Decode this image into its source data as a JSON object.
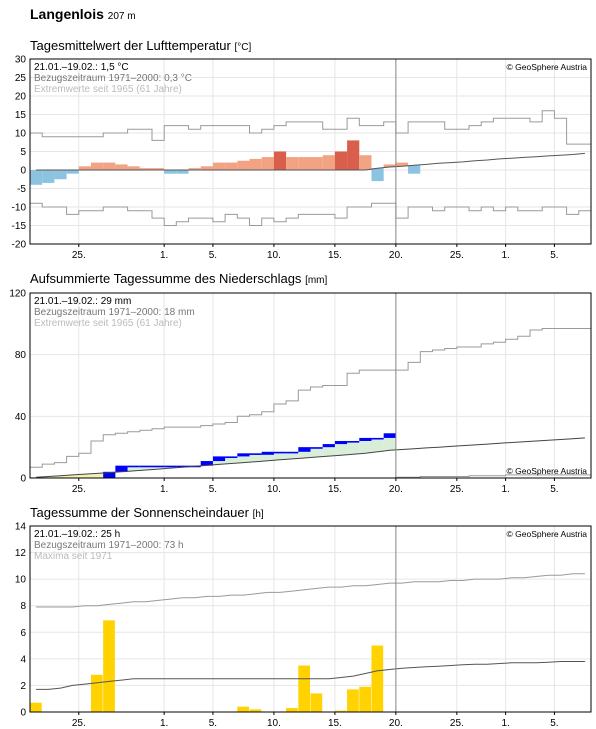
{
  "station": {
    "name": "Langenlois",
    "altitude": "207 m"
  },
  "panels": [
    {
      "title": "Tagesmittelwert der Lufttemperatur",
      "unit": "[°C]"
    },
    {
      "title": "Aufsummierte Tagessumme des Niederschlags",
      "unit": "[mm]"
    },
    {
      "title": "Tagessumme der Sonnenscheindauer",
      "unit": "[h]"
    }
  ],
  "chart_data": [
    {
      "type": "bar",
      "name": "temperature",
      "info": [
        "21.01.–19.02.: 1,5 °C",
        "Bezugszeitraum 1971–2000: 0,3 °C",
        "Extremwerte seit 1965 (61 Jahre)"
      ],
      "copyright": "© GeoSphere Austria",
      "ylim": [
        -20,
        30
      ],
      "yticks": [
        -20,
        -15,
        -10,
        -5,
        0,
        5,
        10,
        15,
        20,
        25,
        30
      ],
      "x_day_range": [
        0,
        46
      ],
      "xticks": [
        {
          "day": 4,
          "label": "25."
        },
        {
          "day": 11,
          "label": "1."
        },
        {
          "day": 15,
          "label": "5."
        },
        {
          "day": 20,
          "label": "10."
        },
        {
          "day": 25,
          "label": "15."
        },
        {
          "day": 30,
          "label": "20."
        },
        {
          "day": 35,
          "label": "25."
        },
        {
          "day": 39,
          "label": "1."
        },
        {
          "day": 43,
          "label": "5."
        }
      ],
      "current_day_marker": 30,
      "daily_values": [
        -4,
        -3.5,
        -2.5,
        -1,
        1,
        2,
        2,
        1.5,
        1,
        0.5,
        0.5,
        -1,
        -1,
        0.5,
        1,
        2,
        2,
        2.5,
        3,
        3.5,
        5,
        3.5,
        3.5,
        3.5,
        4,
        5,
        8,
        4,
        -3,
        1.5,
        2,
        -1
      ],
      "mean_line": [
        0,
        0,
        0,
        0,
        0,
        0,
        0,
        0,
        0,
        0,
        0,
        0,
        0,
        0,
        0,
        0,
        0,
        0,
        0,
        0,
        0,
        0,
        0,
        0,
        0,
        0,
        0,
        0,
        0.5,
        0.8,
        1,
        1.3,
        1.5,
        1.8,
        2,
        2.2,
        2.5,
        2.7,
        3,
        3.2,
        3.4,
        3.6,
        3.8,
        4,
        4.2,
        4.5
      ],
      "max_line": [
        10,
        9,
        9,
        9,
        9,
        9,
        10,
        10,
        11,
        11,
        8,
        12,
        12,
        11,
        12,
        12,
        12,
        12,
        10,
        11,
        12,
        13,
        13,
        13,
        11,
        11,
        14,
        12,
        12,
        13,
        10,
        13,
        13,
        13,
        11,
        11,
        12,
        13,
        14,
        14,
        14,
        13,
        16,
        14,
        7,
        7
      ],
      "min_line": [
        -9,
        -10,
        -10,
        -12,
        -11,
        -11,
        -10,
        -10,
        -11,
        -11,
        -13,
        -15,
        -14,
        -13,
        -13,
        -14,
        -12,
        -13,
        -15,
        -13,
        -14,
        -13,
        -12,
        -12,
        -12,
        -13,
        -10,
        -10,
        -9,
        -9,
        -13,
        -10,
        -10,
        -11,
        -10,
        -10,
        -11,
        -10,
        -11,
        -10,
        -11,
        -11,
        -10,
        -10,
        -12,
        -11
      ]
    },
    {
      "type": "area",
      "name": "precipitation",
      "info": [
        "21.01.–19.02.: 29 mm",
        "Bezugszeitraum 1971–2000: 18 mm",
        "Extremwerte seit 1965 (61 Jahre)"
      ],
      "copyright": "© GeoSphere Austria",
      "ylim": [
        0,
        120
      ],
      "yticks": [
        0,
        40,
        80,
        120
      ],
      "x_day_range": [
        0,
        46
      ],
      "xticks": [
        {
          "day": 4,
          "label": "25."
        },
        {
          "day": 11,
          "label": "1."
        },
        {
          "day": 15,
          "label": "5."
        },
        {
          "day": 20,
          "label": "10."
        },
        {
          "day": 25,
          "label": "15."
        },
        {
          "day": 30,
          "label": "20."
        },
        {
          "day": 35,
          "label": "25."
        },
        {
          "day": 39,
          "label": "1."
        },
        {
          "day": 43,
          "label": "5."
        }
      ],
      "current_day_marker": 30,
      "daily_cumulative": [
        0,
        0,
        0,
        0,
        0,
        0,
        4,
        8,
        8,
        8,
        8,
        8,
        8,
        8,
        11,
        14,
        14,
        16,
        16,
        17,
        17,
        17,
        20,
        20,
        22,
        24,
        24,
        26,
        26,
        29
      ],
      "mean_cumulative": [
        0.5,
        1,
        1.5,
        2,
        2.5,
        3,
        3.5,
        4,
        4.6,
        5.2,
        5.8,
        6.4,
        7,
        7.6,
        8.2,
        8.8,
        9.4,
        10,
        10.6,
        11.2,
        11.8,
        12.4,
        13,
        13.6,
        14.2,
        14.8,
        15.4,
        16,
        17,
        18,
        18.5,
        19,
        19.5,
        20,
        20.5,
        21,
        21.5,
        22,
        22.5,
        23,
        23.5,
        24,
        24.5,
        25,
        25.5,
        26
      ],
      "max_cumulative": [
        7,
        9,
        10,
        14,
        16,
        24,
        28,
        29,
        30,
        31,
        32,
        33,
        33,
        33,
        34,
        35,
        36,
        40,
        41,
        43,
        48,
        50,
        57,
        59,
        60,
        60,
        68,
        70,
        70,
        70,
        70,
        75,
        82,
        83,
        84,
        85,
        85,
        87,
        88,
        90,
        92,
        96,
        97,
        97,
        97,
        97
      ],
      "min_cumulative": [
        0,
        0,
        0,
        0,
        0,
        0,
        0,
        0,
        0,
        0,
        0,
        0,
        0,
        0,
        0,
        0,
        0,
        0,
        0,
        0,
        0,
        0,
        0,
        0,
        0,
        0,
        0,
        0,
        0,
        0,
        0.5,
        0.5,
        1,
        1,
        1,
        1,
        1.5,
        1.5,
        1.5,
        2,
        2,
        2,
        2,
        2,
        2,
        2
      ]
    },
    {
      "type": "bar",
      "name": "sunshine",
      "info": [
        "21.01.–19.02.: 25 h",
        "Bezugszeitraum 1971–2000: 73 h",
        "Maxima seit 1971"
      ],
      "copyright": "© GeoSphere Austria",
      "ylim": [
        0,
        14
      ],
      "yticks": [
        0,
        2,
        4,
        6,
        8,
        10,
        12,
        14
      ],
      "x_day_range": [
        0,
        46
      ],
      "xticks": [
        {
          "day": 4,
          "label": "25."
        },
        {
          "day": 11,
          "label": "1."
        },
        {
          "day": 15,
          "label": "5."
        },
        {
          "day": 20,
          "label": "10."
        },
        {
          "day": 25,
          "label": "15."
        },
        {
          "day": 30,
          "label": "20."
        },
        {
          "day": 35,
          "label": "25."
        },
        {
          "day": 39,
          "label": "1."
        },
        {
          "day": 43,
          "label": "5."
        }
      ],
      "current_day_marker": 30,
      "daily_values": [
        0.7,
        0,
        0,
        0,
        0,
        2.8,
        6.9,
        0,
        0,
        0,
        0,
        0,
        0,
        0,
        0,
        0,
        0,
        0.4,
        0.2,
        0,
        0,
        0.3,
        3.5,
        1.4,
        0,
        0.1,
        1.7,
        1.9,
        5,
        0
      ],
      "mean_line": [
        1.7,
        1.7,
        1.8,
        2,
        2.1,
        2.2,
        2.3,
        2.4,
        2.5,
        2.5,
        2.5,
        2.5,
        2.5,
        2.5,
        2.5,
        2.5,
        2.5,
        2.5,
        2.5,
        2.5,
        2.5,
        2.5,
        2.5,
        2.5,
        2.5,
        2.6,
        2.7,
        2.9,
        3.1,
        3.2,
        3.3,
        3.35,
        3.4,
        3.45,
        3.5,
        3.55,
        3.6,
        3.6,
        3.65,
        3.7,
        3.7,
        3.7,
        3.75,
        3.8,
        3.8,
        3.8
      ],
      "max_line": [
        7.9,
        7.9,
        7.9,
        7.9,
        8,
        8,
        8.1,
        8.2,
        8.3,
        8.3,
        8.4,
        8.5,
        8.6,
        8.6,
        8.7,
        8.7,
        8.8,
        8.8,
        8.9,
        9,
        9,
        9.1,
        9.2,
        9.3,
        9.4,
        9.4,
        9.5,
        9.5,
        9.6,
        9.7,
        9.7,
        9.8,
        9.8,
        9.8,
        9.9,
        9.9,
        10,
        10,
        10,
        10.1,
        10.1,
        10.2,
        10.3,
        10.3,
        10.4,
        10.4
      ]
    }
  ]
}
